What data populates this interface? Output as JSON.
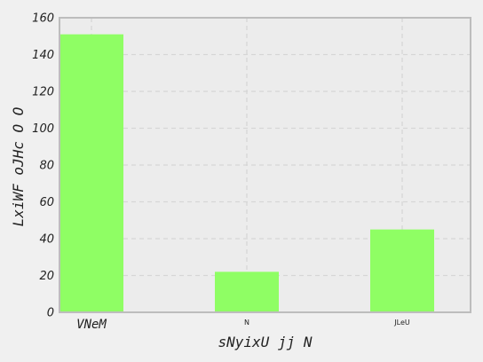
{
  "chart_data": {
    "type": "bar",
    "title": "",
    "xlabel": "sNyixU jj N",
    "ylabel": "LxiWF oJHc O O",
    "categories": [
      "VNeM",
      "N",
      "JLeU"
    ],
    "values": [
      151,
      22,
      45
    ],
    "ylim": [
      0,
      160
    ],
    "yticks": [
      0,
      20,
      40,
      60,
      80,
      100,
      120,
      140,
      160
    ],
    "grid": true,
    "bar_color": "#8ffe64",
    "plot_background": "#ececec",
    "figure_background": "#f0f0f0",
    "spine_color": "#bdbdbd"
  }
}
